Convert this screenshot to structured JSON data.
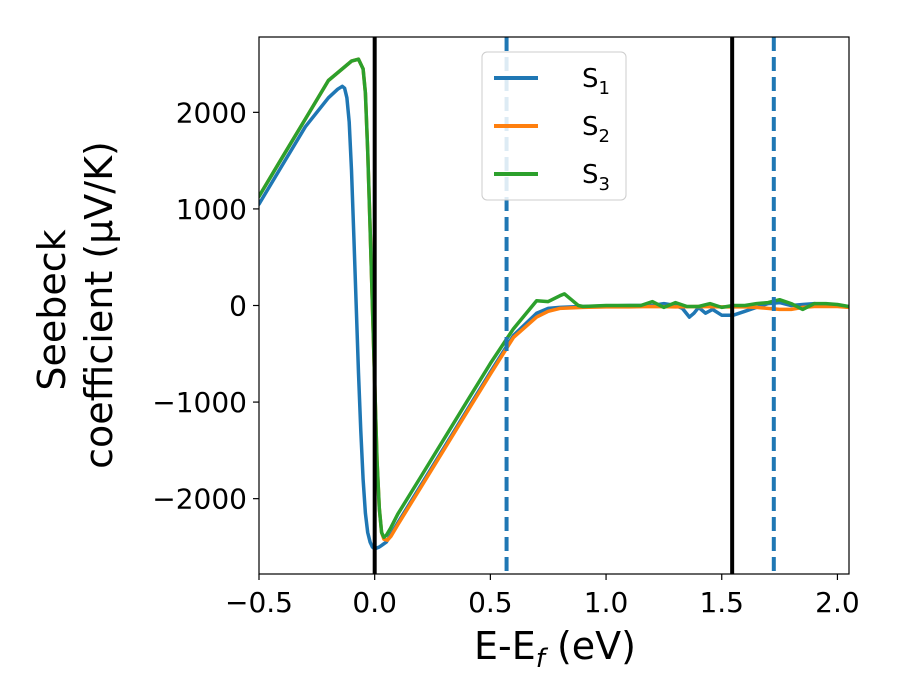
{
  "chart_data": {
    "type": "line",
    "title": "",
    "xlabel": {
      "main": "E-E",
      "sub": "f",
      "tail": " (eV)"
    },
    "ylabel": {
      "line1": "Seebeck",
      "line2": "coefficient  (μV/K)"
    },
    "xlim": [
      -0.5,
      2.05
    ],
    "ylim": [
      -2780,
      2780
    ],
    "xticks": [
      -0.5,
      0.0,
      0.5,
      1.0,
      1.5,
      2.0
    ],
    "xtick_labels": [
      "−0.5",
      "0.0",
      "0.5",
      "1.0",
      "1.5",
      "2.0"
    ],
    "yticks": [
      2000,
      1000,
      0,
      -1000,
      -2000
    ],
    "ytick_labels": [
      "2000",
      "1000",
      "0",
      "−1000",
      "−2000"
    ],
    "grid": false,
    "legend_placement": "upper-center",
    "legend": [
      {
        "main": "S",
        "sub": "1"
      },
      {
        "main": "S",
        "sub": "2"
      },
      {
        "main": "S",
        "sub": "3"
      }
    ],
    "colors": {
      "s1": "#1f77b4",
      "s2": "#ff7f0e",
      "s3": "#2ca02c",
      "vline": "#000000"
    },
    "vlines_solid": [
      0.0,
      1.545
    ],
    "vlines_dashed": [
      0.57,
      1.725
    ],
    "series": [
      {
        "key": "s1",
        "x": [
          -0.5,
          -0.4,
          -0.3,
          -0.2,
          -0.16,
          -0.14,
          -0.13,
          -0.12,
          -0.11,
          -0.1,
          -0.09,
          -0.08,
          -0.07,
          -0.06,
          -0.05,
          -0.04,
          -0.03,
          -0.02,
          -0.01,
          0.0,
          0.02,
          0.05,
          0.07,
          0.1,
          0.2,
          0.3,
          0.4,
          0.5,
          0.6,
          0.7,
          0.75,
          0.8,
          0.85,
          0.9,
          1.0,
          1.1,
          1.2,
          1.25,
          1.3,
          1.33,
          1.36,
          1.38,
          1.4,
          1.43,
          1.46,
          1.5,
          1.55,
          1.6,
          1.65,
          1.7,
          1.75,
          1.8,
          1.85,
          1.9,
          1.95,
          2.0,
          2.05
        ],
        "y": [
          1050,
          1450,
          1850,
          2150,
          2240,
          2270,
          2250,
          2150,
          1900,
          1400,
          700,
          0,
          -700,
          -1300,
          -1800,
          -2150,
          -2350,
          -2450,
          -2500,
          -2520,
          -2500,
          -2450,
          -2370,
          -2250,
          -1860,
          -1470,
          -1080,
          -690,
          -310,
          -80,
          -30,
          -20,
          -15,
          -10,
          -5,
          0,
          0,
          20,
          0,
          -30,
          -120,
          -80,
          -20,
          -80,
          -40,
          -100,
          -100,
          -60,
          -20,
          20,
          30,
          0,
          10,
          20,
          10,
          0,
          -20
        ]
      },
      {
        "key": "s2",
        "x": [
          -0.5,
          -0.4,
          -0.3,
          -0.2,
          -0.1,
          -0.07,
          -0.05,
          -0.04,
          -0.03,
          -0.02,
          -0.01,
          0.0,
          0.01,
          0.02,
          0.03,
          0.04,
          0.055,
          0.07,
          0.1,
          0.2,
          0.3,
          0.4,
          0.5,
          0.6,
          0.7,
          0.75,
          0.8,
          0.85,
          0.9,
          1.0,
          1.1,
          1.2,
          1.3,
          1.4,
          1.5,
          1.6,
          1.65,
          1.7,
          1.75,
          1.8,
          1.85,
          1.9,
          2.0,
          2.05
        ],
        "y": [
          1130,
          1530,
          1930,
          2330,
          2530,
          2550,
          2450,
          2200,
          1600,
          800,
          0,
          -800,
          -1600,
          -2100,
          -2350,
          -2420,
          -2430,
          -2390,
          -2270,
          -1880,
          -1490,
          -1100,
          -710,
          -330,
          -120,
          -60,
          -30,
          -25,
          -20,
          -15,
          -15,
          -10,
          -15,
          -10,
          -15,
          -15,
          -20,
          -30,
          -40,
          -40,
          -20,
          -10,
          -10,
          -20
        ]
      },
      {
        "key": "s3",
        "x": [
          -0.5,
          -0.4,
          -0.3,
          -0.2,
          -0.1,
          -0.07,
          -0.05,
          -0.04,
          -0.03,
          -0.02,
          -0.01,
          0.0,
          0.01,
          0.02,
          0.03,
          0.04,
          0.05,
          0.07,
          0.1,
          0.2,
          0.3,
          0.4,
          0.5,
          0.6,
          0.7,
          0.75,
          0.8,
          0.82,
          0.85,
          0.88,
          0.9,
          1.0,
          1.1,
          1.15,
          1.2,
          1.25,
          1.3,
          1.35,
          1.4,
          1.45,
          1.5,
          1.55,
          1.6,
          1.65,
          1.7,
          1.75,
          1.8,
          1.85,
          1.9,
          1.95,
          2.0,
          2.05
        ],
        "y": [
          1130,
          1530,
          1930,
          2330,
          2530,
          2550,
          2450,
          2200,
          1600,
          800,
          0,
          -800,
          -1600,
          -2100,
          -2350,
          -2400,
          -2380,
          -2300,
          -2160,
          -1770,
          -1380,
          -990,
          -600,
          -240,
          50,
          40,
          100,
          120,
          60,
          0,
          -10,
          0,
          0,
          0,
          40,
          -20,
          30,
          -10,
          -10,
          20,
          -20,
          0,
          0,
          20,
          30,
          60,
          20,
          -40,
          20,
          20,
          10,
          -10
        ]
      }
    ]
  }
}
